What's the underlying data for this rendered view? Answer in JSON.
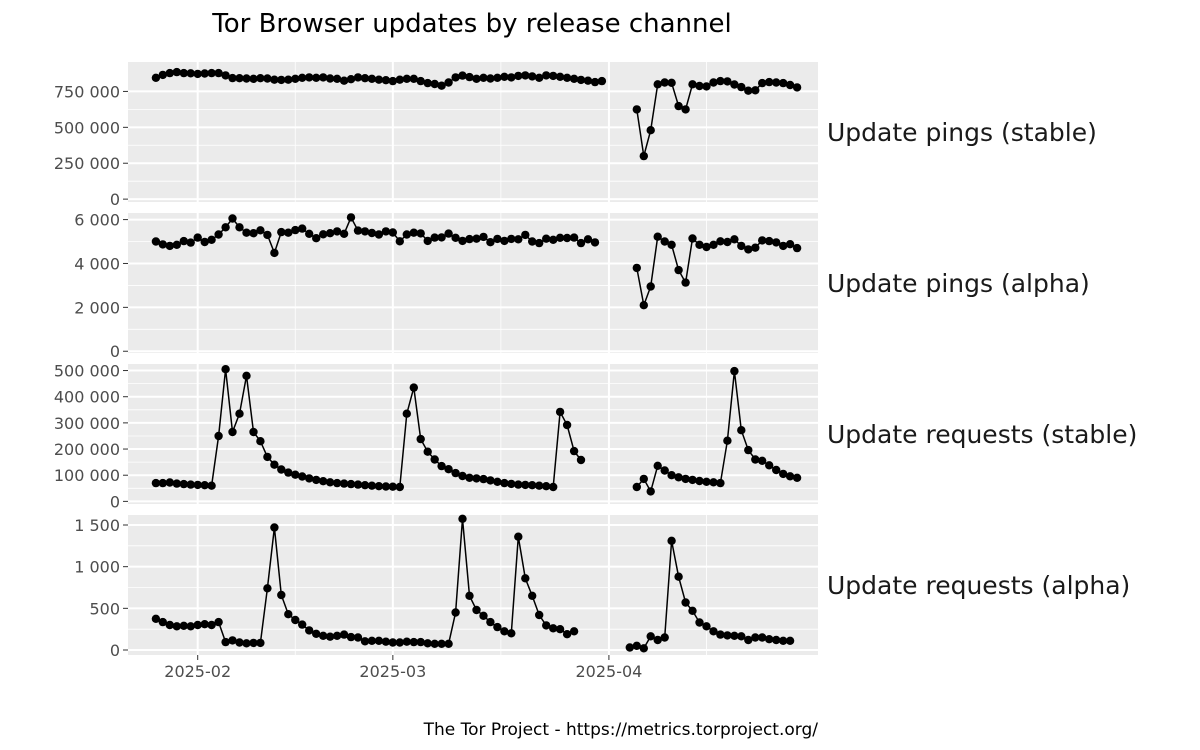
{
  "title": "Tor Browser updates by release channel",
  "caption": "The Tor Project - https://metrics.torproject.org/",
  "colors": {
    "panel": "#ebebeb",
    "grid_major": "#ffffff",
    "line": "#000000",
    "tick_text": "#4d4d4d"
  },
  "chart_data": {
    "type": "line",
    "title": "Tor Browser updates by release channel",
    "xlabel": "",
    "ylabel": "",
    "x_axis": {
      "type": "date",
      "range": [
        "2025-01-22",
        "2025-05-01"
      ],
      "tick_labels": [
        "2025-02",
        "2025-03",
        "2025-04"
      ],
      "tick_dates": [
        "2025-02-01",
        "2025-03-01",
        "2025-04-01"
      ]
    },
    "x_start": "2025-01-26",
    "gap_after": "2025-03-30",
    "gap_before": "2025-04-03",
    "facets": [
      {
        "label": "Update pings (stable)",
        "ylim": [
          -20000,
          955000
        ],
        "y_ticks": [
          0,
          250000,
          500000,
          750000
        ],
        "y_tick_labels": [
          "0",
          "250 000",
          "500 000",
          "750 000"
        ],
        "values": [
          845000,
          865000,
          878000,
          885000,
          878000,
          876000,
          872000,
          875000,
          878000,
          878000,
          862000,
          843000,
          842000,
          840000,
          838000,
          842000,
          840000,
          832000,
          830000,
          832000,
          838000,
          845000,
          848000,
          845000,
          848000,
          840000,
          838000,
          825000,
          835000,
          848000,
          842000,
          838000,
          832000,
          828000,
          822000,
          832000,
          838000,
          838000,
          822000,
          808000,
          802000,
          790000,
          812000,
          848000,
          860000,
          850000,
          838000,
          845000,
          840000,
          845000,
          852000,
          848000,
          858000,
          862000,
          855000,
          845000,
          862000,
          858000,
          852000,
          845000,
          838000,
          830000,
          825000,
          815000,
          822000,
          null,
          null,
          null,
          null,
          625000,
          300000,
          480000,
          800000,
          812000,
          810000,
          648000,
          625000,
          800000,
          788000,
          785000,
          812000,
          822000,
          820000,
          798000,
          780000,
          755000,
          758000,
          808000,
          815000,
          812000,
          808000,
          795000,
          778000
        ]
      },
      {
        "label": "Update pings (alpha)",
        "ylim": [
          -80,
          6300
        ],
        "y_ticks": [
          0,
          2000,
          4000,
          6000
        ],
        "y_tick_labels": [
          "0",
          "2 000",
          "4 000",
          "6 000"
        ],
        "values": [
          5000,
          4870,
          4800,
          4850,
          5020,
          4950,
          5180,
          4980,
          5080,
          5320,
          5650,
          6050,
          5650,
          5400,
          5380,
          5510,
          5300,
          4480,
          5430,
          5400,
          5520,
          5590,
          5350,
          5150,
          5330,
          5380,
          5460,
          5350,
          6100,
          5500,
          5460,
          5390,
          5320,
          5460,
          5410,
          5010,
          5320,
          5400,
          5370,
          5030,
          5180,
          5190,
          5360,
          5170,
          5030,
          5110,
          5130,
          5210,
          4970,
          5120,
          5030,
          5120,
          5100,
          5300,
          5000,
          4930,
          5130,
          5080,
          5170,
          5160,
          5180,
          4930,
          5100,
          4960,
          null,
          null,
          null,
          null,
          null,
          3800,
          2100,
          2950,
          5220,
          5000,
          4850,
          3700,
          3130,
          5140,
          4850,
          4750,
          4850,
          5010,
          4980,
          5100,
          4800,
          4640,
          4720,
          5050,
          5020,
          4960,
          4800,
          4880,
          4700
        ]
      },
      {
        "label": "Update requests (stable)",
        "ylim": [
          -10000,
          525000
        ],
        "y_ticks": [
          0,
          100000,
          200000,
          300000,
          400000,
          500000
        ],
        "y_tick_labels": [
          "0",
          "100 000",
          "200 000",
          "300 000",
          "400 000",
          "500 000"
        ],
        "values": [
          70000,
          70000,
          72000,
          68000,
          66000,
          64000,
          63000,
          62000,
          60000,
          250000,
          505000,
          265000,
          335000,
          480000,
          265000,
          230000,
          170000,
          140000,
          122000,
          110000,
          102000,
          95000,
          88000,
          82000,
          77000,
          73000,
          70000,
          68000,
          66000,
          64000,
          62000,
          60000,
          58000,
          57000,
          56000,
          55000,
          335000,
          435000,
          238000,
          190000,
          160000,
          135000,
          123000,
          108000,
          97000,
          90000,
          88000,
          85000,
          80000,
          75000,
          70000,
          67000,
          64000,
          63000,
          62000,
          60000,
          58000,
          55000,
          342000,
          292000,
          192000,
          158000,
          null,
          null,
          null,
          null,
          null,
          null,
          null,
          55000,
          86000,
          38000,
          136000,
          118000,
          100000,
          92000,
          86000,
          82000,
          78000,
          75000,
          73000,
          70000,
          232000,
          498000,
          272000,
          196000,
          160000,
          155000,
          138000,
          120000,
          105000,
          96000,
          90000
        ]
      },
      {
        "label": "Update requests (alpha)",
        "ylim": [
          -60,
          1620
        ],
        "y_ticks": [
          0,
          500,
          1000,
          1500
        ],
        "y_tick_labels": [
          "0",
          "500",
          "1 000",
          "1 500"
        ],
        "values": [
          375,
          335,
          300,
          285,
          290,
          285,
          300,
          310,
          300,
          335,
          95,
          115,
          90,
          80,
          85,
          85,
          740,
          1470,
          660,
          430,
          360,
          305,
          235,
          195,
          170,
          160,
          170,
          185,
          155,
          150,
          105,
          110,
          110,
          100,
          90,
          90,
          100,
          95,
          95,
          80,
          75,
          75,
          75,
          450,
          1575,
          650,
          480,
          410,
          335,
          275,
          225,
          200,
          1360,
          860,
          650,
          420,
          295,
          260,
          250,
          190,
          225,
          null,
          null,
          null,
          null,
          null,
          null,
          null,
          30,
          50,
          20,
          165,
          120,
          150,
          1310,
          880,
          570,
          470,
          330,
          285,
          225,
          185,
          175,
          170,
          165,
          120,
          150,
          150,
          130,
          120,
          110,
          110
        ]
      }
    ]
  }
}
